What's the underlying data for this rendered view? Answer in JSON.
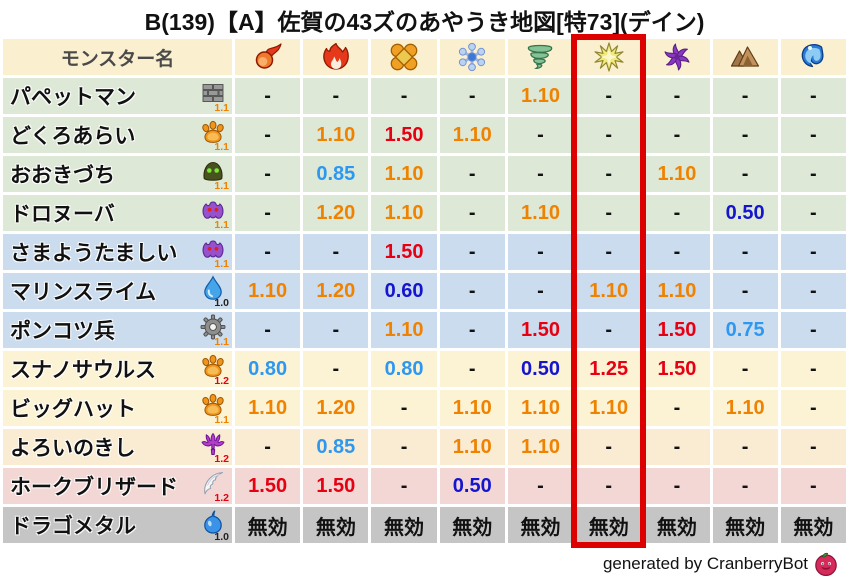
{
  "title": "B(139)【A】佐賀の43ズのあやうき地図[特73](デイン)",
  "footer": {
    "credit": "generated by CranberryBot",
    "icon": "cranberry-icon"
  },
  "colors": {
    "header_bg": "#faf0d0",
    "header_text": "#4a4a4a",
    "highlight_red": "#dd0000",
    "row_palette": {
      "green": "#dde9d6",
      "blue": "#cbdcee",
      "yellow": "#fcf3d4",
      "tan": "#f9ecd2",
      "pink": "#f2d7d4",
      "gray": "#c5c5c5"
    },
    "value_palette": {
      "k": "#111111",
      "o": "#ef8200",
      "r": "#e60012",
      "b": "#2e97f0",
      "d": "#1515cd"
    },
    "scale_palette": {
      "orange": "#ef8200",
      "red": "#e60012",
      "black": "#222222"
    }
  },
  "chart_data": {
    "type": "table",
    "title": "B(139)【A】佐賀の43ズのあやうき地図[特73](デイン)",
    "name_header": "モンスター名",
    "element_columns": [
      {
        "label": "fire",
        "icon": "fireball-icon"
      },
      {
        "label": "flame",
        "icon": "flame-icon"
      },
      {
        "label": "explosion",
        "icon": "explosion-icon"
      },
      {
        "label": "ice",
        "icon": "snowflake-icon"
      },
      {
        "label": "wind",
        "icon": "tornado-icon"
      },
      {
        "label": "lightning",
        "icon": "starburst-icon",
        "highlighted": true
      },
      {
        "label": "dark",
        "icon": "pinwheel-icon"
      },
      {
        "label": "earth",
        "icon": "mountain-icon"
      },
      {
        "label": "water",
        "icon": "wave-icon"
      }
    ],
    "highlight": {
      "column_index": 6
    },
    "rows": [
      {
        "name": "パペットマン",
        "family_icon": "brick-wall-icon",
        "scale": "1.1",
        "scale_color": "orange",
        "row_color": "green",
        "values": [
          "-",
          "-",
          "-",
          "-",
          "1.10",
          "-",
          "-",
          "-",
          "-"
        ],
        "value_colors": "kkkkokkkk"
      },
      {
        "name": "どくろあらい",
        "family_icon": "paw-icon",
        "scale": "1.1",
        "scale_color": "orange",
        "row_color": "green",
        "values": [
          "-",
          "1.10",
          "1.50",
          "1.10",
          "-",
          "-",
          "-",
          "-",
          "-"
        ],
        "value_colors": "korokkkkk"
      },
      {
        "name": "おおきづち",
        "family_icon": "dome-eyes-icon",
        "scale": "1.1",
        "scale_color": "orange",
        "row_color": "green",
        "values": [
          "-",
          "0.85",
          "1.10",
          "-",
          "-",
          "-",
          "1.10",
          "-",
          "-"
        ],
        "value_colors": "kbokkkokk"
      },
      {
        "name": "ドロヌーバ",
        "family_icon": "blob-eyes-icon",
        "scale": "1.1",
        "scale_color": "orange",
        "row_color": "green",
        "values": [
          "-",
          "1.20",
          "1.10",
          "-",
          "1.10",
          "-",
          "-",
          "0.50",
          "-"
        ],
        "value_colors": "kookokkdk"
      },
      {
        "name": "さまようたましい",
        "family_icon": "blob-eyes-icon",
        "scale": "1.1",
        "scale_color": "orange",
        "row_color": "blue",
        "values": [
          "-",
          "-",
          "1.50",
          "-",
          "-",
          "-",
          "-",
          "-",
          "-"
        ],
        "value_colors": "kkrkkkkkk"
      },
      {
        "name": "マリンスライム",
        "family_icon": "droplet-icon",
        "scale": "1.0",
        "scale_color": "black",
        "row_color": "blue",
        "values": [
          "1.10",
          "1.20",
          "0.60",
          "-",
          "-",
          "1.10",
          "1.10",
          "-",
          "-"
        ],
        "value_colors": "oodkkookk"
      },
      {
        "name": "ポンコツ兵",
        "family_icon": "gear-icon",
        "scale": "1.1",
        "scale_color": "orange",
        "row_color": "blue",
        "values": [
          "-",
          "-",
          "1.10",
          "-",
          "1.50",
          "-",
          "1.50",
          "0.75",
          "-"
        ],
        "value_colors": "kkokrkrbk"
      },
      {
        "name": "スナノサウルス",
        "family_icon": "paw-icon",
        "scale": "1.2",
        "scale_color": "red",
        "row_color": "yellow",
        "values": [
          "0.80",
          "-",
          "0.80",
          "-",
          "0.50",
          "1.25",
          "1.50",
          "-",
          "-"
        ],
        "value_colors": "bkbkdrrkk"
      },
      {
        "name": "ビッグハット",
        "family_icon": "paw-icon",
        "scale": "1.1",
        "scale_color": "orange",
        "row_color": "yellow",
        "values": [
          "1.10",
          "1.20",
          "-",
          "1.10",
          "1.10",
          "1.10",
          "-",
          "1.10",
          "-"
        ],
        "value_colors": "ookoookok"
      },
      {
        "name": "よろいのきし",
        "family_icon": "trident-icon",
        "scale": "1.2",
        "scale_color": "red",
        "row_color": "tan",
        "values": [
          "-",
          "0.85",
          "-",
          "1.10",
          "1.10",
          "-",
          "-",
          "-",
          "-"
        ],
        "value_colors": "kbkookkkk"
      },
      {
        "name": "ホークブリザード",
        "family_icon": "wing-icon",
        "scale": "1.2",
        "scale_color": "red",
        "row_color": "pink",
        "values": [
          "1.50",
          "1.50",
          "-",
          "0.50",
          "-",
          "-",
          "-",
          "-",
          "-"
        ],
        "value_colors": "rrkdkkkkk"
      },
      {
        "name": "ドラゴメタル",
        "family_icon": "slime-icon",
        "scale": "1.0",
        "scale_color": "black",
        "row_color": "gray",
        "values": [
          "無効",
          "無効",
          "無効",
          "無効",
          "無効",
          "無効",
          "無効",
          "無効",
          "無効"
        ],
        "value_colors": "kkkkkkkkk"
      }
    ]
  }
}
